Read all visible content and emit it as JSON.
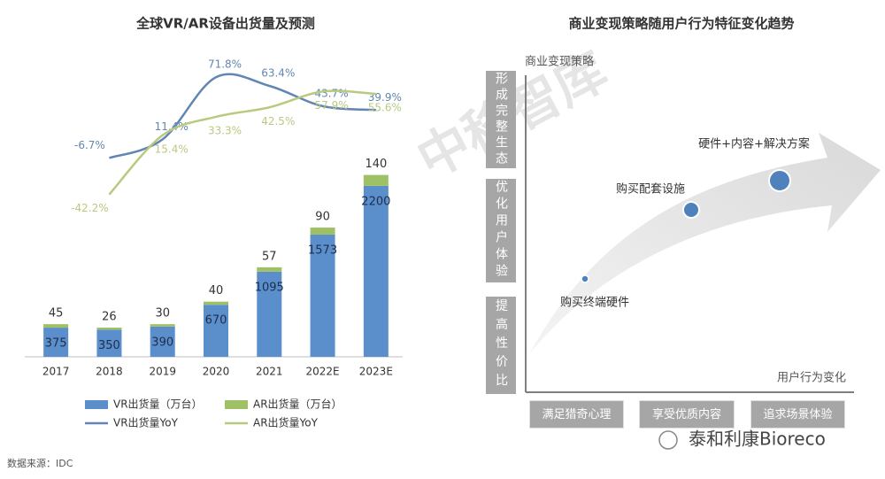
{
  "chart_data": {
    "type": "bar",
    "title": "全球VR/AR设备出货量及预测",
    "categories": [
      "2017",
      "2018",
      "2019",
      "2020",
      "2021",
      "2022E",
      "2023E"
    ],
    "series": [
      {
        "name": "VR出货量（万台）",
        "type": "bar",
        "color": "#5b8fcb",
        "values": [
          375,
          350,
          390,
          670,
          1095,
          1573,
          2200
        ]
      },
      {
        "name": "AR出货量（万台）",
        "type": "bar",
        "color": "#9fc166",
        "values": [
          45,
          26,
          30,
          40,
          57,
          90,
          140
        ]
      },
      {
        "name": "VR出货量YoY",
        "type": "line",
        "axis": "y2",
        "color": "#6286b3",
        "values": [
          null,
          -6.7,
          11.4,
          71.8,
          63.4,
          43.7,
          39.9
        ],
        "value_labels": [
          null,
          "-6.7%",
          "11.4%",
          "71.8%",
          "63.4%",
          "43.7%",
          "39.9%"
        ]
      },
      {
        "name": "AR出货量YoY",
        "type": "line",
        "axis": "y2",
        "color": "#b8ca80",
        "values": [
          null,
          -42.2,
          15.4,
          33.3,
          42.5,
          57.9,
          55.6
        ],
        "value_labels": [
          null,
          "-42.2%",
          "15.4%",
          "33.3%",
          "42.5%",
          "57.9%",
          "55.6%"
        ]
      }
    ],
    "ylim": [
      0,
      4500
    ],
    "y2lim": [
      -200,
      140
    ],
    "stacked": true,
    "smooth": true,
    "legend": "bottom"
  },
  "source": "数据来源：IDC",
  "diagram": {
    "title": "商业变现策略随用户行为特征变化趋势",
    "watermark": "中移智库",
    "y_label": "商业变现策略",
    "x_label": "用户行为变化",
    "y_levels": [
      "形成完整生态",
      "优化用户体验",
      "提高性价比"
    ],
    "x_levels": [
      "满足猎奇心理",
      "享受优质内容",
      "追求场景体验"
    ],
    "nodes": [
      {
        "label": "购买终端硬件"
      },
      {
        "label": "购买配套设施"
      },
      {
        "label": "硬件+内容+解决方案"
      }
    ]
  },
  "footer": "泰和利康Bioreco"
}
